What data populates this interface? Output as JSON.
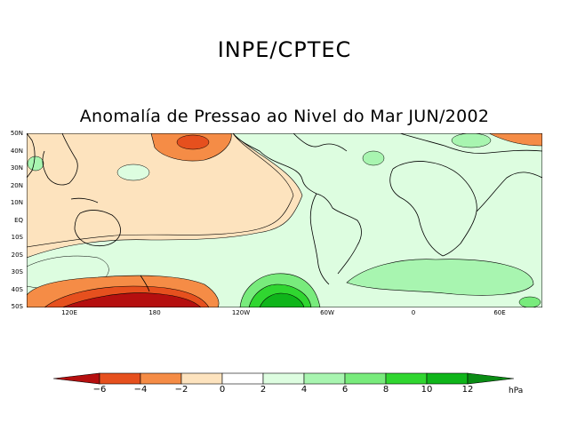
{
  "header": {
    "title": "INPE/CPTEC"
  },
  "map": {
    "title": "Anomalía de Pressao ao Nivel do Mar JUN/2002",
    "lat_labels": [
      "50N",
      "40N",
      "30N",
      "20N",
      "10N",
      "EQ",
      "10S",
      "20S",
      "30S",
      "40S",
      "50S"
    ],
    "lon_labels": [
      "120E",
      "180",
      "120W",
      "60W",
      "0",
      "60E"
    ]
  },
  "legend": {
    "ticks": [
      "−6",
      "−4",
      "−2",
      "0",
      "2",
      "4",
      "6",
      "8",
      "10",
      "12"
    ],
    "unit": "hPa",
    "colors": {
      "lt_-6": "#b50f0f",
      "-6_-4": "#e6501e",
      "-4_-2": "#f58c46",
      "-2_0": "#fde3be",
      "0_2": "#ffffff",
      "2_4": "#ddfde0",
      "4_6": "#a8f5b0",
      "6_8": "#78eb7c",
      "8_10": "#30d630",
      "10_12": "#0fb51a",
      "gt_12": "#0a8c14"
    }
  }
}
